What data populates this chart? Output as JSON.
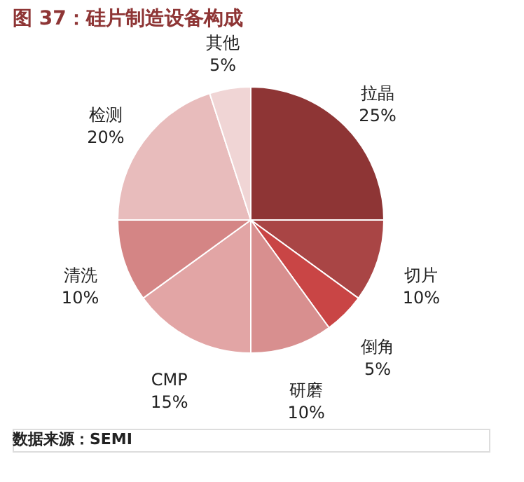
{
  "chart_data": {
    "type": "pie",
    "title": "图 37：硅片制造设备构成",
    "categories": [
      "拉晶",
      "切片",
      "倒角",
      "研磨",
      "CMP",
      "清洗",
      "检测",
      "其他"
    ],
    "values": [
      25,
      10,
      5,
      10,
      15,
      10,
      20,
      5
    ],
    "value_labels": [
      "25%",
      "10%",
      "5%",
      "10%",
      "15%",
      "10%",
      "20%",
      "5%"
    ],
    "colors": [
      "#8e3535",
      "#a94545",
      "#c94545",
      "#d88f8f",
      "#e2a5a5",
      "#d48585",
      "#e8bcbc",
      "#f0d5d5"
    ],
    "annotations": [
      "数据来源：SEMI"
    ],
    "legend": false
  }
}
